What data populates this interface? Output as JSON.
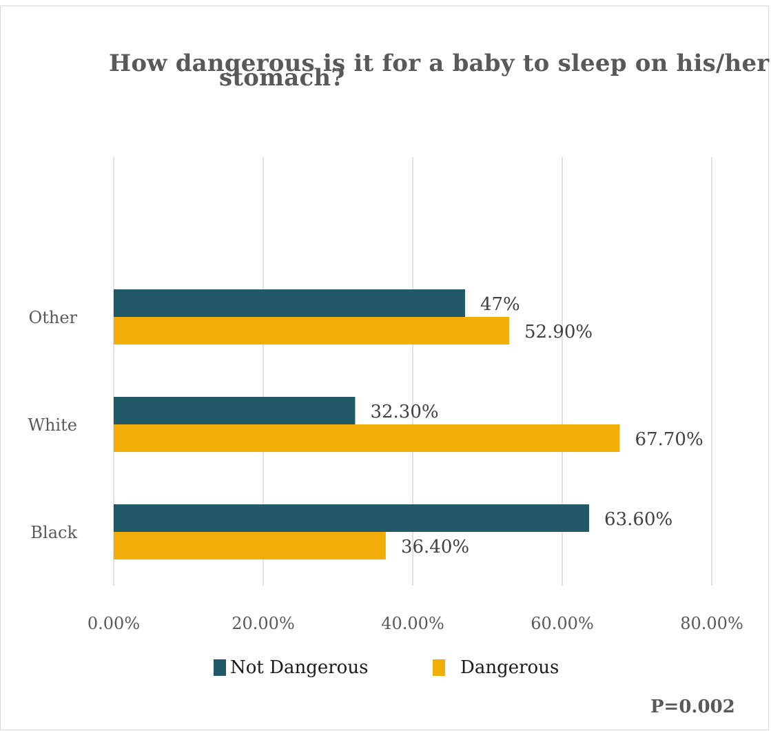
{
  "chart_data": {
    "type": "bar",
    "orientation": "horizontal",
    "title_lines": [
      "How dangerous is it for a baby to sleep on his/her",
      "stomach?"
    ],
    "categories": [
      "Black",
      "White",
      "Other"
    ],
    "series": [
      {
        "name": "Not Dangerous",
        "color": "#215966",
        "values": [
          63.6,
          32.3,
          47.0
        ],
        "labels": [
          "63.60%",
          "32.30%",
          "47%"
        ]
      },
      {
        "name": "Dangerous",
        "color": "#f2ae08",
        "values": [
          36.4,
          67.7,
          52.9
        ],
        "labels": [
          "36.40%",
          "67.70%",
          "52.90%"
        ]
      }
    ],
    "x_ticks": [
      0,
      20,
      40,
      60,
      80
    ],
    "x_tick_labels": [
      "0.00%",
      "20.00%",
      "40.00%",
      "60.00%",
      "80.00%"
    ],
    "xlim": [
      0,
      80
    ],
    "grid": true,
    "legend_position": "bottom",
    "annotation": "P=0.002"
  }
}
